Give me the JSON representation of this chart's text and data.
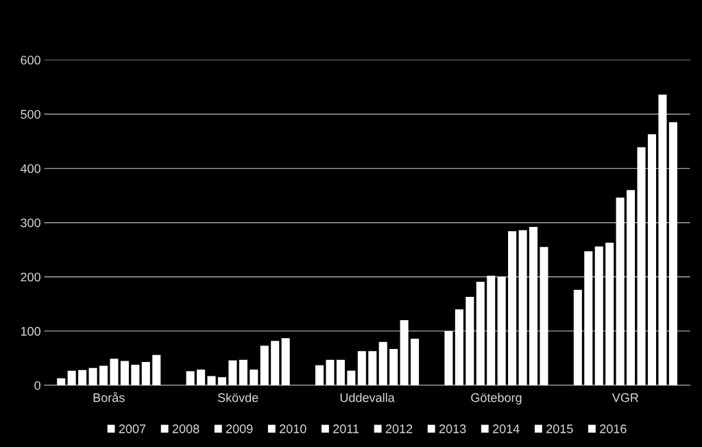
{
  "chart_data": {
    "type": "bar",
    "categories": [
      "Borås",
      "Skövde",
      "Uddevalla",
      "Göteborg",
      "VGR"
    ],
    "series": [
      {
        "name": "2007",
        "color": "#ffffff",
        "values": [
          13,
          26,
          37,
          100,
          176
        ]
      },
      {
        "name": "2008",
        "color": "#ffffff",
        "values": [
          27,
          29,
          47,
          140,
          247
        ]
      },
      {
        "name": "2009",
        "color": "#ffffff",
        "values": [
          28,
          17,
          47,
          163,
          256
        ]
      },
      {
        "name": "2010",
        "color": "#ffffff",
        "values": [
          32,
          15,
          27,
          191,
          263
        ]
      },
      {
        "name": "2011",
        "color": "#ffffff",
        "values": [
          36,
          46,
          63,
          202,
          346
        ]
      },
      {
        "name": "2012",
        "color": "#ffffff",
        "values": [
          49,
          47,
          63,
          200,
          360
        ]
      },
      {
        "name": "2013",
        "color": "#ffffff",
        "values": [
          45,
          29,
          80,
          284,
          439
        ]
      },
      {
        "name": "2014",
        "color": "#ffffff",
        "values": [
          38,
          73,
          67,
          286,
          463
        ]
      },
      {
        "name": "2015",
        "color": "#ffffff",
        "values": [
          43,
          82,
          120,
          292,
          536
        ]
      },
      {
        "name": "2016",
        "color": "#ffffff",
        "values": [
          56,
          87,
          86,
          255,
          485
        ]
      }
    ],
    "ylim": [
      0,
      600
    ],
    "yticks": [
      0,
      100,
      200,
      300,
      400,
      500,
      600
    ],
    "grid": "y",
    "legend": "bottom"
  }
}
